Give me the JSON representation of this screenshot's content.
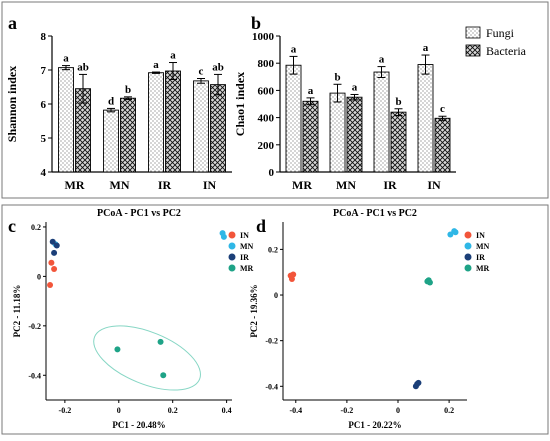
{
  "colors": {
    "IN": "#f2553a",
    "MN": "#2fb7e6",
    "IR": "#1b3f78",
    "MR": "#1ea387",
    "ellipse": "#86d6c4",
    "frame": "#7a7a7a"
  },
  "panels": {
    "a": {
      "letter": "a"
    },
    "b": {
      "letter": "b"
    },
    "c": {
      "letter": "c"
    },
    "d": {
      "letter": "d"
    }
  },
  "legend_bars": {
    "fungi": "Fungi",
    "bacteria": "Bacteria"
  },
  "legend_pcoa": [
    "IN",
    "MN",
    "IR",
    "MR"
  ],
  "chart_data": [
    {
      "panel": "a",
      "type": "bar",
      "ylabel": "Shannon index",
      "ylim": [
        4,
        8
      ],
      "yticks": [
        4,
        5,
        6,
        7,
        8
      ],
      "categories": [
        "MR",
        "MN",
        "IR",
        "IN"
      ],
      "series": [
        {
          "name": "Fungi",
          "values": [
            7.07,
            5.82,
            6.92,
            6.68
          ],
          "errors": [
            0.06,
            0.05,
            0.02,
            0.07
          ],
          "letters": [
            "a",
            "d",
            "a",
            "c"
          ]
        },
        {
          "name": "Bacteria",
          "values": [
            6.45,
            6.17,
            6.97,
            6.57
          ],
          "errors": [
            0.42,
            0.04,
            0.25,
            0.3
          ],
          "letters": [
            "ab",
            "b",
            "a",
            "ab"
          ]
        }
      ]
    },
    {
      "panel": "b",
      "type": "bar",
      "ylabel": "Chao1 index",
      "ylim": [
        0,
        1000
      ],
      "yticks": [
        0,
        200,
        400,
        600,
        800,
        1000
      ],
      "categories": [
        "MR",
        "MN",
        "IR",
        "IN"
      ],
      "series": [
        {
          "name": "Fungi",
          "values": [
            785,
            580,
            735,
            790
          ],
          "errors": [
            65,
            65,
            40,
            70
          ],
          "letters": [
            "a",
            "b",
            "a",
            "a"
          ]
        },
        {
          "name": "Bacteria",
          "values": [
            520,
            550,
            440,
            395
          ],
          "errors": [
            25,
            20,
            25,
            15
          ],
          "letters": [
            "a",
            "a",
            "b",
            "c"
          ]
        }
      ]
    },
    {
      "panel": "c",
      "type": "scatter",
      "title": "PCoA - PC1 vs PC2",
      "xlabel": "PC1 - 20.48%",
      "ylabel": "PC2 - 11.18%",
      "xlim": [
        -0.27,
        0.42
      ],
      "ylim": [
        -0.5,
        0.22
      ],
      "xticks": [
        -0.2,
        0,
        0.2,
        0.4
      ],
      "yticks": [
        -0.4,
        -0.2,
        0,
        0.2
      ],
      "series": [
        {
          "name": "IN",
          "points": [
            [
              -0.25,
              0.055
            ],
            [
              -0.24,
              0.03
            ],
            [
              -0.255,
              -0.035
            ]
          ]
        },
        {
          "name": "MN",
          "points": [
            [
              0.385,
              0.175
            ],
            [
              0.39,
              0.16
            ],
            [
              -0.235,
              0.13
            ]
          ]
        },
        {
          "name": "IR",
          "points": [
            [
              -0.245,
              0.14
            ],
            [
              -0.23,
              0.125
            ],
            [
              -0.24,
              0.095
            ]
          ]
        },
        {
          "name": "MR",
          "points": [
            [
              -0.005,
              -0.295
            ],
            [
              0.155,
              -0.265
            ],
            [
              0.165,
              -0.4
            ]
          ]
        }
      ],
      "ellipses": [
        {
          "group": "MR",
          "cx": 0.105,
          "cy": -0.33,
          "rx": 0.21,
          "ry": 0.105,
          "rotation_deg": 22
        }
      ]
    },
    {
      "panel": "d",
      "type": "scatter",
      "title": "PCoA - PC1 vs PC2",
      "xlabel": "PC1 - 20.22%",
      "ylabel": "PC2 - 19.36%",
      "xlim": [
        -0.45,
        0.27
      ],
      "ylim": [
        -0.46,
        0.32
      ],
      "xticks": [
        -0.4,
        -0.2,
        0,
        0.2
      ],
      "yticks": [
        -0.4,
        -0.2,
        0,
        0.2
      ],
      "series": [
        {
          "name": "IN",
          "points": [
            [
              -0.42,
              0.085
            ],
            [
              -0.415,
              0.07
            ],
            [
              -0.41,
              0.09
            ]
          ]
        },
        {
          "name": "MN",
          "points": [
            [
              0.22,
              0.28
            ],
            [
              0.205,
              0.265
            ],
            [
              0.225,
              0.275
            ]
          ]
        },
        {
          "name": "IR",
          "points": [
            [
              0.07,
              -0.4
            ],
            [
              0.075,
              -0.39
            ],
            [
              0.08,
              -0.385
            ]
          ]
        },
        {
          "name": "MR",
          "points": [
            [
              0.115,
              0.06
            ],
            [
              0.125,
              0.055
            ],
            [
              0.12,
              0.065
            ]
          ]
        }
      ]
    }
  ]
}
